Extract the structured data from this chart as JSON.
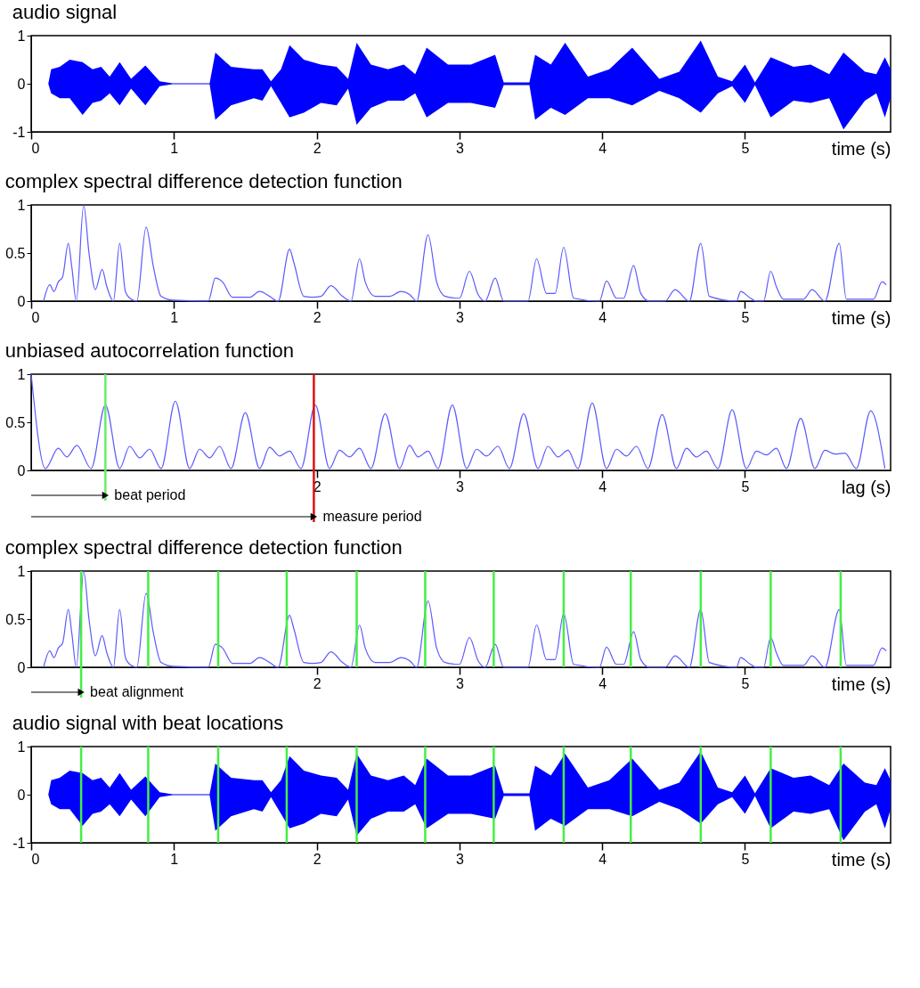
{
  "chart_data": [
    {
      "type": "area",
      "title": "audio signal",
      "xlabel": "time (s)",
      "xlim": [
        0,
        6.02
      ],
      "xticks": [
        0,
        1,
        2,
        3,
        4,
        5
      ],
      "ylim": [
        -1,
        1
      ],
      "yticks": [
        -1,
        0,
        1
      ],
      "grid": false,
      "series": [
        {
          "color": "#0000ff",
          "x": [
            0,
            0.12,
            0.14,
            0.2,
            0.27,
            0.36,
            0.43,
            0.49,
            0.55,
            0.62,
            0.7,
            0.8,
            0.9,
            0.99,
            1.25,
            1.29,
            1.4,
            1.56,
            1.62,
            1.68,
            1.75,
            1.81,
            1.91,
            2.03,
            2.14,
            2.22,
            2.28,
            2.38,
            2.5,
            2.61,
            2.69,
            2.77,
            2.92,
            3.08,
            3.25,
            3.31,
            3.49,
            3.53,
            3.64,
            3.74,
            3.9,
            4.05,
            4.21,
            4.4,
            4.54,
            4.69,
            4.81,
            4.91,
            5.0,
            5.07,
            5.18,
            5.34,
            5.46,
            5.59,
            5.69,
            5.84,
            5.92,
            5.98,
            6.02
          ],
          "values": [
            0,
            0,
            0.3,
            0.35,
            0.5,
            0.45,
            0.3,
            0.35,
            0.15,
            0.45,
            0.1,
            0.38,
            0.05,
            0.01,
            0.01,
            0.65,
            0.35,
            0.3,
            0.3,
            0.05,
            0.3,
            0.8,
            0.5,
            0.4,
            0.35,
            0.1,
            0.85,
            0.4,
            0.3,
            0.4,
            0.2,
            0.75,
            0.4,
            0.4,
            0.6,
            0.03,
            0.03,
            0.6,
            0.4,
            0.85,
            0.15,
            0.3,
            0.75,
            0.1,
            0.25,
            0.9,
            0.15,
            0.05,
            0.4,
            0.03,
            0.55,
            0.35,
            0.4,
            0.2,
            0.65,
            0.25,
            0.2,
            0.55,
            0.3
          ]
        },
        {
          "color": "#0000ff",
          "x": [
            0,
            0.12,
            0.14,
            0.2,
            0.27,
            0.36,
            0.43,
            0.49,
            0.55,
            0.62,
            0.7,
            0.8,
            0.9,
            0.99,
            1.25,
            1.29,
            1.4,
            1.56,
            1.62,
            1.68,
            1.75,
            1.81,
            1.91,
            2.03,
            2.14,
            2.22,
            2.28,
            2.38,
            2.5,
            2.61,
            2.69,
            2.77,
            2.92,
            3.08,
            3.25,
            3.31,
            3.49,
            3.53,
            3.64,
            3.74,
            3.9,
            4.05,
            4.21,
            4.4,
            4.54,
            4.69,
            4.81,
            4.91,
            5.0,
            5.07,
            5.18,
            5.34,
            5.46,
            5.59,
            5.69,
            5.84,
            5.92,
            5.98,
            6.02
          ],
          "values": [
            0,
            0,
            -0.2,
            -0.3,
            -0.3,
            -0.65,
            -0.4,
            -0.35,
            -0.2,
            -0.45,
            -0.1,
            -0.45,
            -0.05,
            -0.01,
            -0.01,
            -0.75,
            -0.45,
            -0.3,
            -0.35,
            -0.05,
            -0.4,
            -0.7,
            -0.6,
            -0.4,
            -0.45,
            -0.1,
            -0.85,
            -0.5,
            -0.35,
            -0.35,
            -0.2,
            -0.7,
            -0.4,
            -0.4,
            -0.5,
            -0.03,
            -0.03,
            -0.75,
            -0.5,
            -0.65,
            -0.3,
            -0.3,
            -0.45,
            -0.15,
            -0.3,
            -0.6,
            -0.2,
            -0.05,
            -0.4,
            -0.03,
            -0.7,
            -0.35,
            -0.4,
            -0.3,
            -0.95,
            -0.35,
            -0.2,
            -0.7,
            -0.3
          ]
        }
      ]
    },
    {
      "type": "line",
      "title": "complex spectral difference detection function",
      "xlabel": "time (s)",
      "xlim": [
        0,
        6.02
      ],
      "xticks": [
        0,
        1,
        2,
        3,
        4,
        5
      ],
      "ylim": [
        0,
        1
      ],
      "yticks": [
        0,
        0.5,
        1
      ],
      "grid": false,
      "series": [
        {
          "color": "#5a5aff",
          "x": [
            0.087,
            0.13,
            0.16,
            0.19,
            0.22,
            0.26,
            0.285,
            0.316,
            0.368,
            0.405,
            0.45,
            0.497,
            0.53,
            0.576,
            0.62,
            0.66,
            0.7,
            0.74,
            0.805,
            0.857,
            0.91,
            0.99,
            1.24,
            1.29,
            1.34,
            1.41,
            1.53,
            1.6,
            1.67,
            1.73,
            1.81,
            1.84,
            1.91,
            1.97,
            2.03,
            2.1,
            2.18,
            2.24,
            2.3,
            2.34,
            2.41,
            2.51,
            2.59,
            2.65,
            2.7,
            2.78,
            2.84,
            2.9,
            3.0,
            3.07,
            3.13,
            3.18,
            3.25,
            3.31,
            3.48,
            3.54,
            3.61,
            3.67,
            3.73,
            3.8,
            3.98,
            4.03,
            4.1,
            4.15,
            4.22,
            4.27,
            4.33,
            4.44,
            4.51,
            4.61,
            4.69,
            4.75,
            4.94,
            4.97,
            5.03,
            5.08,
            5.13,
            5.18,
            5.22,
            5.27,
            5.41,
            5.47,
            5.56,
            5.66,
            5.71,
            5.9,
            5.96,
            5.99
          ],
          "values": [
            0,
            0.17,
            0.1,
            0.2,
            0.25,
            0.6,
            0.35,
            0,
            1.0,
            0.5,
            0.12,
            0.33,
            0.15,
            0,
            0.6,
            0.1,
            0.02,
            0,
            0.77,
            0.35,
            0.05,
            0.01,
            0,
            0.24,
            0.2,
            0.04,
            0.04,
            0.1,
            0.05,
            0,
            0.54,
            0.4,
            0.05,
            0.04,
            0.05,
            0.16,
            0.05,
            0,
            0.44,
            0.2,
            0.05,
            0.05,
            0.1,
            0.07,
            0,
            0.69,
            0.2,
            0.05,
            0.03,
            0.31,
            0.07,
            0,
            0.24,
            0,
            0,
            0.44,
            0.08,
            0.08,
            0.56,
            0.03,
            0,
            0.21,
            0.03,
            0.03,
            0.37,
            0.08,
            0,
            0,
            0.12,
            0,
            0.6,
            0.05,
            0,
            0.1,
            0.04,
            0,
            0,
            0.31,
            0.15,
            0.02,
            0.02,
            0.12,
            0,
            0.6,
            0.02,
            0.02,
            0.2,
            0.17
          ]
        }
      ]
    },
    {
      "type": "line",
      "title": "unbiased autocorrelation function",
      "xlabel": "lag (s)",
      "xlim": [
        0,
        6.02
      ],
      "xticks": [
        2,
        3,
        4,
        5
      ],
      "ylim": [
        0,
        1
      ],
      "yticks": [
        0,
        0.5,
        1
      ],
      "grid": false,
      "series": [
        {
          "color": "#5a5aff",
          "x": [
            0,
            0.1,
            0.19,
            0.25,
            0.32,
            0.42,
            0.52,
            0.62,
            0.69,
            0.76,
            0.83,
            0.91,
            1.01,
            1.11,
            1.18,
            1.25,
            1.32,
            1.4,
            1.5,
            1.6,
            1.67,
            1.74,
            1.81,
            1.89,
            1.99,
            2.09,
            2.16,
            2.23,
            2.3,
            2.38,
            2.48,
            2.58,
            2.65,
            2.71,
            2.78,
            2.85,
            2.95,
            3.05,
            3.12,
            3.19,
            3.27,
            3.35,
            3.45,
            3.55,
            3.62,
            3.69,
            3.76,
            3.83,
            3.93,
            4.03,
            4.1,
            4.17,
            4.24,
            4.32,
            4.42,
            4.52,
            4.59,
            4.66,
            4.73,
            4.81,
            4.91,
            5.01,
            5.08,
            5.15,
            5.22,
            5.29,
            5.39,
            5.49,
            5.56,
            5.63,
            5.7,
            5.78,
            5.88,
            5.98
          ],
          "values": [
            1.0,
            0.02,
            0.23,
            0.14,
            0.26,
            0.02,
            0.68,
            0.02,
            0.25,
            0.13,
            0.22,
            0.02,
            0.72,
            0.02,
            0.22,
            0.13,
            0.25,
            0.02,
            0.6,
            0.02,
            0.24,
            0.15,
            0.2,
            0.02,
            0.68,
            0.02,
            0.21,
            0.14,
            0.23,
            0.02,
            0.59,
            0.02,
            0.26,
            0.14,
            0.2,
            0.02,
            0.68,
            0.02,
            0.22,
            0.15,
            0.25,
            0.02,
            0.59,
            0.02,
            0.25,
            0.14,
            0.21,
            0.02,
            0.7,
            0.02,
            0.22,
            0.15,
            0.25,
            0.02,
            0.58,
            0.02,
            0.23,
            0.14,
            0.2,
            0.02,
            0.63,
            0.02,
            0.2,
            0.16,
            0.23,
            0.02,
            0.54,
            0.02,
            0.21,
            0.17,
            0.18,
            0.02,
            0.62,
            0.02
          ]
        }
      ],
      "ref_lines": [
        {
          "axis": "x",
          "value": 0.52,
          "label": "beat period",
          "color": "#66ee66"
        },
        {
          "axis": "x",
          "value": 1.98,
          "label": "measure period",
          "color": "#dd1111"
        }
      ]
    },
    {
      "type": "line",
      "title": "complex spectral difference detection function",
      "xlabel": "time (s)",
      "xlim": [
        0,
        6.02
      ],
      "xticks": [
        2,
        3,
        4,
        5
      ],
      "ylim": [
        0,
        1
      ],
      "yticks": [
        0,
        0.5,
        1
      ],
      "grid": false,
      "series": [
        {
          "color": "#5a5aff",
          "x": [
            0.087,
            0.13,
            0.16,
            0.19,
            0.22,
            0.26,
            0.285,
            0.316,
            0.368,
            0.405,
            0.45,
            0.497,
            0.53,
            0.576,
            0.62,
            0.66,
            0.7,
            0.74,
            0.805,
            0.857,
            0.91,
            0.99,
            1.24,
            1.29,
            1.34,
            1.41,
            1.53,
            1.6,
            1.67,
            1.73,
            1.81,
            1.84,
            1.91,
            1.97,
            2.03,
            2.1,
            2.18,
            2.24,
            2.3,
            2.34,
            2.41,
            2.51,
            2.59,
            2.65,
            2.7,
            2.78,
            2.84,
            2.9,
            3.0,
            3.07,
            3.13,
            3.18,
            3.25,
            3.31,
            3.48,
            3.54,
            3.61,
            3.67,
            3.73,
            3.8,
            3.98,
            4.03,
            4.1,
            4.15,
            4.22,
            4.27,
            4.33,
            4.44,
            4.51,
            4.61,
            4.69,
            4.75,
            4.94,
            4.97,
            5.03,
            5.08,
            5.13,
            5.18,
            5.22,
            5.27,
            5.41,
            5.47,
            5.56,
            5.66,
            5.71,
            5.9,
            5.96,
            5.99
          ],
          "values": [
            0,
            0.17,
            0.1,
            0.2,
            0.25,
            0.6,
            0.35,
            0,
            1.0,
            0.5,
            0.12,
            0.33,
            0.15,
            0,
            0.6,
            0.1,
            0.02,
            0,
            0.77,
            0.35,
            0.05,
            0.01,
            0,
            0.24,
            0.2,
            0.04,
            0.04,
            0.1,
            0.05,
            0,
            0.54,
            0.4,
            0.05,
            0.04,
            0.05,
            0.16,
            0.05,
            0,
            0.44,
            0.2,
            0.05,
            0.05,
            0.1,
            0.07,
            0,
            0.69,
            0.2,
            0.05,
            0.03,
            0.31,
            0.07,
            0,
            0.24,
            0,
            0,
            0.44,
            0.08,
            0.08,
            0.56,
            0.03,
            0,
            0.21,
            0.03,
            0.03,
            0.37,
            0.08,
            0,
            0,
            0.12,
            0,
            0.6,
            0.05,
            0,
            0.1,
            0.04,
            0,
            0,
            0.31,
            0.15,
            0.02,
            0.02,
            0.12,
            0,
            0.6,
            0.02,
            0.02,
            0.2,
            0.17
          ]
        }
      ],
      "ref_lines": [
        {
          "axis": "x",
          "value": 0.35,
          "label": "beat alignment",
          "color": "#44ee44"
        },
        {
          "axis": "x",
          "value": 0.82,
          "color": "#44ee44"
        },
        {
          "axis": "x",
          "value": 1.31,
          "color": "#44ee44"
        },
        {
          "axis": "x",
          "value": 1.79,
          "color": "#44ee44"
        },
        {
          "axis": "x",
          "value": 2.28,
          "color": "#44ee44"
        },
        {
          "axis": "x",
          "value": 2.76,
          "color": "#44ee44"
        },
        {
          "axis": "x",
          "value": 3.24,
          "color": "#44ee44"
        },
        {
          "axis": "x",
          "value": 3.73,
          "color": "#44ee44"
        },
        {
          "axis": "x",
          "value": 4.2,
          "color": "#44ee44"
        },
        {
          "axis": "x",
          "value": 4.69,
          "color": "#44ee44"
        },
        {
          "axis": "x",
          "value": 5.18,
          "color": "#44ee44"
        },
        {
          "axis": "x",
          "value": 5.67,
          "color": "#44ee44"
        }
      ]
    },
    {
      "type": "area",
      "title": "audio signal with beat locations",
      "xlabel": "time (s)",
      "xlim": [
        0,
        6.02
      ],
      "xticks": [
        0,
        1,
        2,
        3,
        4,
        5
      ],
      "ylim": [
        -1,
        1
      ],
      "yticks": [
        -1,
        0,
        1
      ],
      "grid": false,
      "series": [
        {
          "color": "#0000ff",
          "x": [
            0,
            0.12,
            0.14,
            0.2,
            0.27,
            0.36,
            0.43,
            0.49,
            0.55,
            0.62,
            0.7,
            0.8,
            0.9,
            0.99,
            1.25,
            1.29,
            1.4,
            1.56,
            1.62,
            1.68,
            1.75,
            1.81,
            1.91,
            2.03,
            2.14,
            2.22,
            2.28,
            2.38,
            2.5,
            2.61,
            2.69,
            2.77,
            2.92,
            3.08,
            3.25,
            3.31,
            3.49,
            3.53,
            3.64,
            3.74,
            3.9,
            4.05,
            4.21,
            4.4,
            4.54,
            4.69,
            4.81,
            4.91,
            5.0,
            5.07,
            5.18,
            5.34,
            5.46,
            5.59,
            5.69,
            5.84,
            5.92,
            5.98,
            6.02
          ],
          "values": [
            0,
            0,
            0.3,
            0.35,
            0.5,
            0.45,
            0.3,
            0.35,
            0.15,
            0.45,
            0.1,
            0.38,
            0.05,
            0.01,
            0.01,
            0.65,
            0.35,
            0.3,
            0.3,
            0.05,
            0.3,
            0.8,
            0.5,
            0.4,
            0.35,
            0.1,
            0.85,
            0.4,
            0.3,
            0.4,
            0.2,
            0.75,
            0.4,
            0.4,
            0.6,
            0.03,
            0.03,
            0.6,
            0.4,
            0.85,
            0.15,
            0.3,
            0.75,
            0.1,
            0.25,
            0.9,
            0.15,
            0.05,
            0.4,
            0.03,
            0.55,
            0.35,
            0.4,
            0.2,
            0.65,
            0.25,
            0.2,
            0.55,
            0.3
          ]
        },
        {
          "color": "#0000ff",
          "x": [
            0,
            0.12,
            0.14,
            0.2,
            0.27,
            0.36,
            0.43,
            0.49,
            0.55,
            0.62,
            0.7,
            0.8,
            0.9,
            0.99,
            1.25,
            1.29,
            1.4,
            1.56,
            1.62,
            1.68,
            1.75,
            1.81,
            1.91,
            2.03,
            2.14,
            2.22,
            2.28,
            2.38,
            2.5,
            2.61,
            2.69,
            2.77,
            2.92,
            3.08,
            3.25,
            3.31,
            3.49,
            3.53,
            3.64,
            3.74,
            3.9,
            4.05,
            4.21,
            4.4,
            4.54,
            4.69,
            4.81,
            4.91,
            5.0,
            5.07,
            5.18,
            5.34,
            5.46,
            5.59,
            5.69,
            5.84,
            5.92,
            5.98,
            6.02
          ],
          "values": [
            0,
            0,
            -0.2,
            -0.3,
            -0.3,
            -0.65,
            -0.4,
            -0.35,
            -0.2,
            -0.45,
            -0.1,
            -0.45,
            -0.05,
            -0.01,
            -0.01,
            -0.75,
            -0.45,
            -0.3,
            -0.35,
            -0.05,
            -0.4,
            -0.7,
            -0.6,
            -0.4,
            -0.45,
            -0.1,
            -0.85,
            -0.5,
            -0.35,
            -0.35,
            -0.2,
            -0.7,
            -0.4,
            -0.4,
            -0.5,
            -0.03,
            -0.03,
            -0.75,
            -0.5,
            -0.65,
            -0.3,
            -0.3,
            -0.45,
            -0.15,
            -0.3,
            -0.6,
            -0.2,
            -0.05,
            -0.4,
            -0.03,
            -0.7,
            -0.35,
            -0.4,
            -0.3,
            -0.95,
            -0.35,
            -0.2,
            -0.7,
            -0.3
          ]
        }
      ],
      "ref_lines": [
        {
          "axis": "x",
          "value": 0.35,
          "color": "#44ee44"
        },
        {
          "axis": "x",
          "value": 0.82,
          "color": "#44ee44"
        },
        {
          "axis": "x",
          "value": 1.31,
          "color": "#44ee44"
        },
        {
          "axis": "x",
          "value": 1.79,
          "color": "#44ee44"
        },
        {
          "axis": "x",
          "value": 2.28,
          "color": "#44ee44"
        },
        {
          "axis": "x",
          "value": 2.76,
          "color": "#44ee44"
        },
        {
          "axis": "x",
          "value": 3.24,
          "color": "#44ee44"
        },
        {
          "axis": "x",
          "value": 3.73,
          "color": "#44ee44"
        },
        {
          "axis": "x",
          "value": 4.2,
          "color": "#44ee44"
        },
        {
          "axis": "x",
          "value": 4.69,
          "color": "#44ee44"
        },
        {
          "axis": "x",
          "value": 5.18,
          "color": "#44ee44"
        },
        {
          "axis": "x",
          "value": 5.67,
          "color": "#44ee44"
        }
      ]
    }
  ]
}
